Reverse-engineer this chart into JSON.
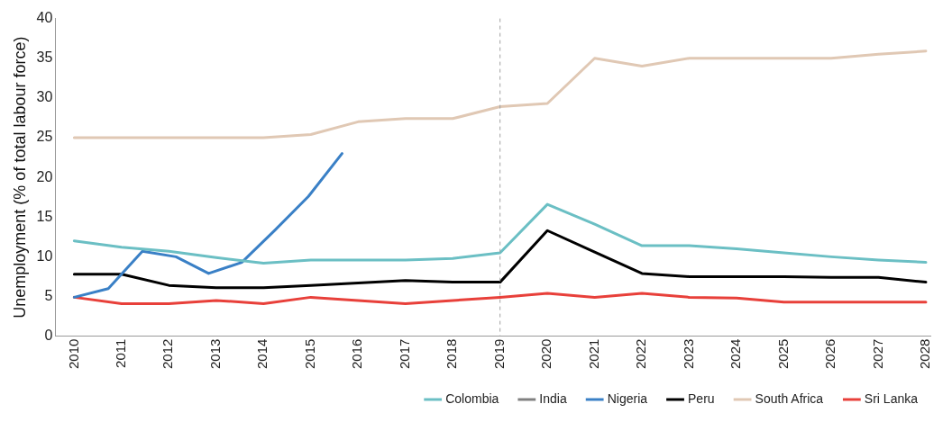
{
  "chart_data": {
    "type": "line",
    "ylabel": "Unemployment (% of total labour force)",
    "x": [
      2010,
      2011,
      2012,
      2013,
      2014,
      2015,
      2016,
      2017,
      2018,
      2019,
      2020,
      2021,
      2022,
      2023,
      2024,
      2025,
      2026,
      2027,
      2028
    ],
    "xlim": [
      2009.6,
      2028.1
    ],
    "xticks": [
      2010,
      2011,
      2012,
      2013,
      2014,
      2015,
      2016,
      2017,
      2018,
      2019,
      2020,
      2021,
      2022,
      2023,
      2024,
      2025,
      2026,
      2027,
      2028
    ],
    "ylim": [
      0,
      40
    ],
    "yticks": [
      0,
      5,
      10,
      15,
      20,
      25,
      30,
      35,
      40
    ],
    "grid": false,
    "legend": "bottom",
    "marker": "none",
    "line_style": "solid",
    "ref_lines": [
      {
        "axis": "x",
        "value": 2019,
        "color": "#a0a0a0",
        "line_style": "dashed"
      }
    ],
    "series": [
      {
        "name": "Colombia",
        "color": "#6bbfc4",
        "values": [
          12,
          11.2,
          10.7,
          9.9,
          9.2,
          9.6,
          9.6,
          9.6,
          9.8,
          10.5,
          16.6,
          14.1,
          11.4,
          11.4,
          11,
          10.5,
          10,
          9.6,
          9.3
        ]
      },
      {
        "name": "India",
        "color": "#808080",
        "values": [
          null,
          null,
          null,
          null,
          null,
          null,
          null,
          null,
          null,
          null,
          null,
          null,
          null,
          null,
          null,
          null,
          null,
          null,
          null
        ]
      },
      {
        "name": "Nigeria",
        "color": "#3a80c6",
        "x": [
          2010,
          2010.72,
          2011.44,
          2012.15,
          2012.84,
          2013.54,
          2014.25,
          2014.95,
          2015.66
        ],
        "values": [
          4.9,
          6,
          10.7,
          10,
          7.9,
          9.3,
          13.4,
          17.6,
          23
        ]
      },
      {
        "name": "Peru",
        "color": "#000000",
        "values": [
          7.8,
          7.8,
          6.4,
          6.1,
          6.1,
          6.4,
          6.7,
          7,
          6.8,
          6.8,
          13.3,
          10.6,
          7.9,
          7.5,
          7.5,
          7.5,
          7.4,
          7.4,
          6.8
        ]
      },
      {
        "name": "South Africa",
        "color": "#e0c8b4",
        "values": [
          25,
          25,
          25,
          25,
          25,
          25.4,
          27,
          27.4,
          27.4,
          28.9,
          29.3,
          35,
          34,
          35,
          35,
          35,
          35,
          35.5,
          35.9
        ]
      },
      {
        "name": "Sri Lanka",
        "color": "#e8403a",
        "values": [
          4.9,
          4.1,
          4.1,
          4.5,
          4.1,
          4.9,
          4.5,
          4.1,
          4.5,
          4.9,
          5.4,
          4.9,
          5.4,
          4.9,
          4.8,
          4.3,
          4.3,
          4.3,
          4.3
        ]
      }
    ]
  }
}
